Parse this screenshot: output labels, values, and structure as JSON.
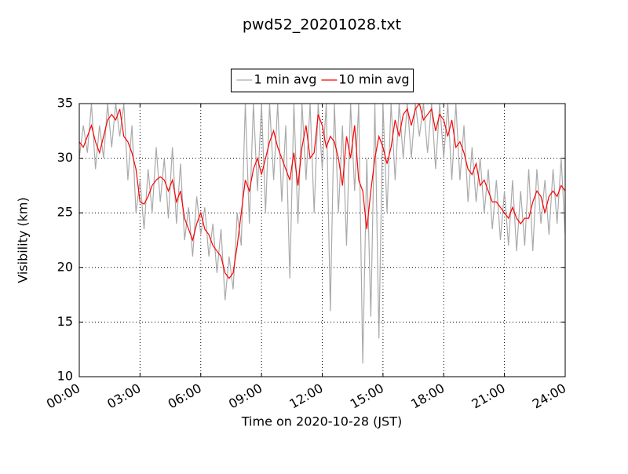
{
  "chart_data": {
    "type": "line",
    "title": "pwd52_20201028.txt",
    "xlabel": "Time on 2020-10-28 (JST)",
    "ylabel": "Visibility (km)",
    "xlim": [
      0,
      24
    ],
    "ylim": [
      10,
      35
    ],
    "xticks": [
      {
        "value": 0,
        "label": "00:00"
      },
      {
        "value": 3,
        "label": "03:00"
      },
      {
        "value": 6,
        "label": "06:00"
      },
      {
        "value": 9,
        "label": "09:00"
      },
      {
        "value": 12,
        "label": "12:00"
      },
      {
        "value": 15,
        "label": "15:00"
      },
      {
        "value": 18,
        "label": "18:00"
      },
      {
        "value": 21,
        "label": "21:00"
      },
      {
        "value": 24,
        "label": "24:00"
      }
    ],
    "yticks": [
      10,
      15,
      20,
      25,
      30,
      35
    ],
    "grid": true,
    "legend": "upper center",
    "x": [
      0,
      0.2,
      0.4,
      0.6,
      0.8,
      1,
      1.2,
      1.4,
      1.6,
      1.8,
      2,
      2.2,
      2.4,
      2.6,
      2.8,
      3,
      3.2,
      3.4,
      3.6,
      3.8,
      4,
      4.2,
      4.4,
      4.6,
      4.8,
      5,
      5.2,
      5.4,
      5.6,
      5.8,
      6,
      6.2,
      6.4,
      6.6,
      6.8,
      7,
      7.2,
      7.4,
      7.6,
      7.8,
      8,
      8.2,
      8.4,
      8.6,
      8.8,
      9,
      9.2,
      9.4,
      9.6,
      9.8,
      10,
      10.2,
      10.4,
      10.6,
      10.8,
      11,
      11.2,
      11.4,
      11.6,
      11.8,
      12,
      12.2,
      12.4,
      12.6,
      12.8,
      13,
      13.2,
      13.4,
      13.6,
      13.8,
      14,
      14.2,
      14.4,
      14.6,
      14.8,
      15,
      15.2,
      15.4,
      15.6,
      15.8,
      16,
      16.2,
      16.4,
      16.6,
      16.8,
      17,
      17.2,
      17.4,
      17.6,
      17.8,
      18,
      18.2,
      18.4,
      18.6,
      18.8,
      19,
      19.2,
      19.4,
      19.6,
      19.8,
      20,
      20.2,
      20.4,
      20.6,
      20.8,
      21,
      21.2,
      21.4,
      21.6,
      21.8,
      22,
      22.2,
      22.4,
      22.6,
      22.8,
      23,
      23.2,
      23.4,
      23.6,
      23.8,
      24
    ],
    "series": [
      {
        "name": "1 min avg",
        "color": "#aaaaaa",
        "values": [
          30,
          33,
          30.5,
          35,
          29,
          33,
          30,
          35,
          31,
          35,
          32,
          35,
          28,
          33,
          25,
          28,
          23.5,
          29,
          25,
          31,
          26,
          30,
          24.5,
          31,
          24,
          29.5,
          22.5,
          25.5,
          21,
          26.5,
          23,
          25.5,
          21,
          24,
          19.5,
          23.5,
          17,
          21,
          18,
          25,
          22,
          35,
          24,
          35,
          27,
          35,
          25,
          35,
          28,
          35,
          26,
          33,
          19,
          35,
          24,
          35,
          28,
          35,
          25,
          35,
          29,
          35,
          16,
          35,
          25,
          33,
          22,
          35,
          27,
          35,
          11.2,
          30,
          15.5,
          35,
          13.5,
          35,
          25,
          35,
          28,
          35,
          30,
          35,
          30,
          35,
          32,
          35,
          30.5,
          35,
          29,
          35,
          30,
          35,
          28,
          35,
          28,
          33,
          26,
          31,
          26,
          30,
          25,
          29,
          23.5,
          28,
          22.5,
          27,
          22,
          28,
          21.5,
          27,
          22,
          29,
          21.5,
          29,
          24,
          28,
          23,
          29,
          24,
          30,
          23
        ]
      },
      {
        "name": "10 min avg",
        "color": "#ff0000",
        "values": [
          31.5,
          31,
          32,
          33,
          31.5,
          30.5,
          32,
          33.5,
          34,
          33.5,
          34.5,
          32,
          31.5,
          30.5,
          29,
          26,
          25.8,
          26.5,
          27.5,
          28,
          28.3,
          28,
          27,
          28,
          26,
          27,
          24.5,
          23.5,
          22.5,
          24,
          25,
          23.5,
          23,
          22,
          21.5,
          21,
          19.5,
          19,
          19.5,
          22,
          25,
          28,
          27,
          29,
          30,
          28.5,
          30,
          31.5,
          32.5,
          31,
          30,
          29,
          28,
          30.5,
          27.5,
          31,
          33,
          30,
          30.5,
          34,
          33,
          31,
          32,
          31.5,
          30,
          27.5,
          32,
          30,
          33,
          28,
          27,
          23.5,
          27,
          30,
          32,
          31,
          29.5,
          31,
          33.5,
          32,
          34,
          34.5,
          33,
          34.5,
          35,
          33.5,
          34,
          34.5,
          32.5,
          34,
          33.5,
          32,
          33.5,
          31,
          31.5,
          30.5,
          29,
          28.5,
          29.5,
          27.5,
          28,
          27,
          26,
          26,
          25.5,
          25,
          24.5,
          25.5,
          24.5,
          24,
          24.5,
          24.5,
          26,
          27,
          26.5,
          25,
          26.5,
          27,
          26.5,
          27.5,
          27
        ]
      }
    ]
  }
}
